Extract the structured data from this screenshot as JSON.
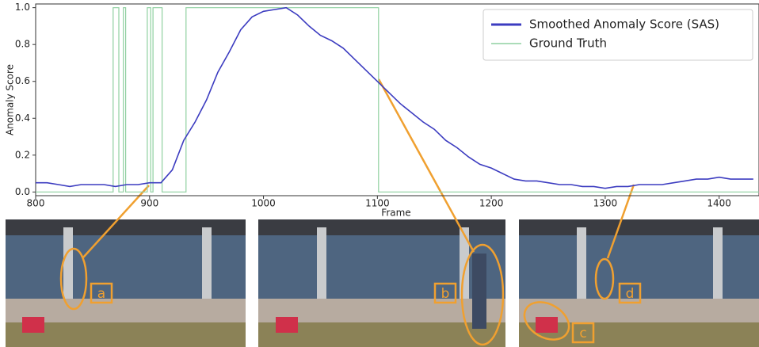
{
  "chart_data": {
    "type": "line",
    "xlabel": "Frame",
    "ylabel": "Anomaly Score",
    "xlim": [
      800,
      1435
    ],
    "ylim": [
      -0.02,
      1.02
    ],
    "xticks": [
      800,
      900,
      1000,
      1100,
      1200,
      1300,
      1400
    ],
    "yticks": [
      {
        "value": 0,
        "label": "0.0"
      },
      0.2,
      0.4,
      0.6,
      0.8,
      {
        "value": 1,
        "label": "1.0"
      }
    ],
    "legend": "upper right",
    "series": [
      {
        "name": "Smoothed Anomaly Score (SAS)",
        "color": "#3c3cc0",
        "x": [
          800,
          810,
          820,
          830,
          840,
          850,
          860,
          870,
          880,
          890,
          900,
          910,
          920,
          930,
          940,
          950,
          960,
          970,
          980,
          990,
          1000,
          1010,
          1020,
          1030,
          1040,
          1050,
          1060,
          1070,
          1080,
          1090,
          1100,
          1110,
          1120,
          1130,
          1140,
          1150,
          1160,
          1170,
          1180,
          1190,
          1200,
          1210,
          1220,
          1230,
          1240,
          1250,
          1260,
          1270,
          1280,
          1290,
          1300,
          1310,
          1320,
          1330,
          1340,
          1350,
          1360,
          1370,
          1380,
          1390,
          1400,
          1410,
          1420,
          1430
        ],
        "values": [
          0.05,
          0.05,
          0.04,
          0.03,
          0.04,
          0.04,
          0.04,
          0.03,
          0.04,
          0.04,
          0.05,
          0.05,
          0.12,
          0.28,
          0.38,
          0.5,
          0.65,
          0.76,
          0.88,
          0.95,
          0.98,
          0.99,
          1.0,
          0.96,
          0.9,
          0.85,
          0.82,
          0.78,
          0.72,
          0.66,
          0.6,
          0.54,
          0.48,
          0.43,
          0.38,
          0.34,
          0.28,
          0.24,
          0.19,
          0.15,
          0.13,
          0.1,
          0.07,
          0.06,
          0.06,
          0.05,
          0.04,
          0.04,
          0.03,
          0.03,
          0.02,
          0.03,
          0.03,
          0.04,
          0.04,
          0.04,
          0.05,
          0.06,
          0.07,
          0.07,
          0.08,
          0.07,
          0.07,
          0.07
        ]
      },
      {
        "name": "Ground Truth",
        "color": "#8fd0a0",
        "x": [
          800,
          868,
          868,
          873,
          873,
          877,
          877,
          879,
          879,
          898,
          898,
          901,
          901,
          903,
          903,
          911,
          911,
          932,
          932,
          1101,
          1101,
          1435
        ],
        "values": [
          0,
          0,
          1,
          1,
          0,
          0,
          1,
          1,
          0,
          0,
          1,
          1,
          0,
          0,
          1,
          1,
          0,
          0,
          1,
          1,
          0,
          0
        ]
      }
    ],
    "annotations": [
      "a",
      "b",
      "c",
      "d"
    ]
  }
}
